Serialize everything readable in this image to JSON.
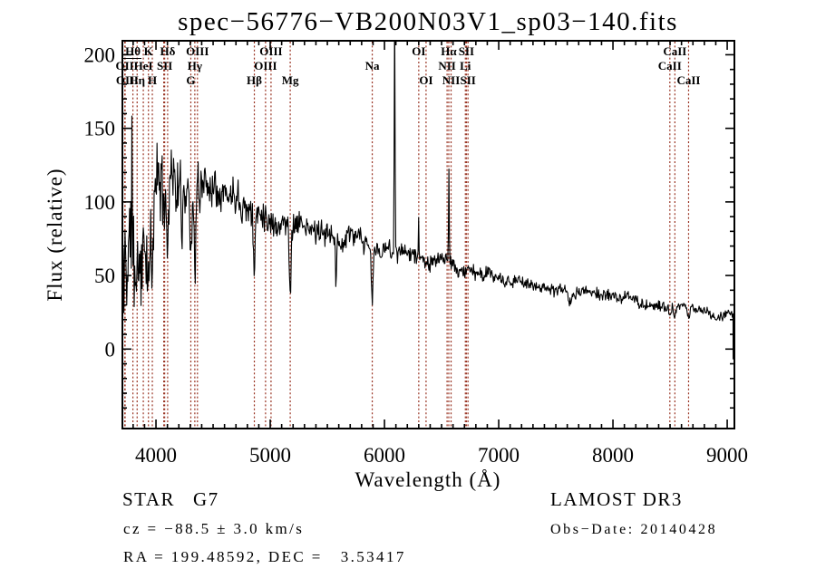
{
  "title": "spec−56776−VB200N03V1_sp03−140.fits",
  "axes": {
    "xlabel": "Wavelength (Å)",
    "ylabel": "Flux (relative)"
  },
  "annotations": {
    "classification": "STAR",
    "subclass": "G7",
    "survey": "LAMOST DR3",
    "cz": "cz = −88.5 ± 3.0 km/s",
    "obs_date": "Obs−Date: 20140428",
    "ra_dec": "RA = 199.48592, DEC =   3.53417"
  },
  "chart_data": {
    "type": "line",
    "title": "spec−56776−VB200N03V1_sp03−140.fits",
    "xlabel": "Wavelength (Å)",
    "ylabel": "Flux (relative)",
    "xlim": [
      3706,
      9063
    ],
    "ylim": [
      -54,
      209.5
    ],
    "x_major_ticks": [
      4000,
      5000,
      6000,
      7000,
      8000,
      9000
    ],
    "x_minor_step": 100,
    "y_major_ticks": [
      0,
      50,
      100,
      150,
      200
    ],
    "y_minor_step": 10,
    "grid": false,
    "line_color": "#000000",
    "marker_line_color": "#993322",
    "spectral_lines": [
      {
        "label": "OII",
        "wl": 3727,
        "row": 2
      },
      {
        "label": "OII",
        "wl": 3730,
        "row": 3
      },
      {
        "label": "Hθ",
        "wl": 3798,
        "row": 1
      },
      {
        "label": "Hη",
        "wl": 3835,
        "row": 3
      },
      {
        "label": "HeI",
        "wl": 3889,
        "row": 2
      },
      {
        "label": "K",
        "wl": 3934,
        "row": 1
      },
      {
        "label": "H",
        "wl": 3968,
        "row": 3
      },
      {
        "label": "",
        "wl": 4068,
        "row": 0
      },
      {
        "label": "SII",
        "wl": 4076,
        "row": 2
      },
      {
        "label": "Hδ",
        "wl": 4102,
        "row": 1
      },
      {
        "label": "G",
        "wl": 4305,
        "row": 3
      },
      {
        "label": "Hγ",
        "wl": 4340,
        "row": 2
      },
      {
        "label": "OIII",
        "wl": 4363,
        "row": 1
      },
      {
        "label": "Hβ",
        "wl": 4861,
        "row": 3
      },
      {
        "label": "OIII",
        "wl": 4959,
        "row": 2
      },
      {
        "label": "OIII",
        "wl": 5007,
        "row": 1
      },
      {
        "label": "Mg",
        "wl": 5175,
        "row": 3
      },
      {
        "label": "Na",
        "wl": 5893,
        "row": 2
      },
      {
        "label": "OI",
        "wl": 6300,
        "row": 1
      },
      {
        "label": "OI",
        "wl": 6364,
        "row": 3
      },
      {
        "label": "NII",
        "wl": 6548,
        "row": 2
      },
      {
        "label": "Hα",
        "wl": 6563,
        "row": 1
      },
      {
        "label": "NII",
        "wl": 6583,
        "row": 3
      },
      {
        "label": "Li",
        "wl": 6708,
        "row": 2
      },
      {
        "label": "SII",
        "wl": 6717,
        "row": 1
      },
      {
        "label": "SII",
        "wl": 6731,
        "row": 3
      },
      {
        "label": "CaII",
        "wl": 8498,
        "row": 2
      },
      {
        "label": "CaII",
        "wl": 8542,
        "row": 1
      },
      {
        "label": "CaII",
        "wl": 8662,
        "row": 3
      }
    ],
    "spectrum_model": {
      "description": "Noisy G-type stellar spectrum: blue end very noisy (±65 about flux ~60), continuum peaks ~110-115 near 4400-4600 Å, declines to ~22 at 9000 Å; strong narrow emission artifact at 6089 Å clipped at plot top (>209), emission spike at Hα 6563 Å peaking ~126, small spike at 6300 Å (~92), deep absorption at CaII K/H, Hδ, Hγ, G, Hβ, Mg 5175, 5577, Na 5893; trace drops to ~ −7 at the red end",
      "continuum": [
        [
          3706,
          35
        ],
        [
          3730,
          60
        ],
        [
          3760,
          62
        ],
        [
          3790,
          68
        ],
        [
          3820,
          72
        ],
        [
          3850,
          78
        ],
        [
          3900,
          88
        ],
        [
          3950,
          98
        ],
        [
          4000,
          106
        ],
        [
          4050,
          104
        ],
        [
          4100,
          107
        ],
        [
          4150,
          108
        ],
        [
          4200,
          110
        ],
        [
          4250,
          107
        ],
        [
          4300,
          109
        ],
        [
          4350,
          107
        ],
        [
          4400,
          114
        ],
        [
          4450,
          112
        ],
        [
          4500,
          114
        ],
        [
          4550,
          110
        ],
        [
          4600,
          111
        ],
        [
          4650,
          107
        ],
        [
          4700,
          107
        ],
        [
          4750,
          104
        ],
        [
          4800,
          101
        ],
        [
          4850,
          98
        ],
        [
          4900,
          96
        ],
        [
          4950,
          93
        ],
        [
          5000,
          91
        ],
        [
          5100,
          88
        ],
        [
          5200,
          86
        ],
        [
          5300,
          85
        ],
        [
          5400,
          82
        ],
        [
          5500,
          79
        ],
        [
          5600,
          77
        ],
        [
          5700,
          75
        ],
        [
          5800,
          72
        ],
        [
          5900,
          69
        ],
        [
          6000,
          67
        ],
        [
          6100,
          65
        ],
        [
          6200,
          64
        ],
        [
          6300,
          62
        ],
        [
          6400,
          60
        ],
        [
          6500,
          59
        ],
        [
          6600,
          57
        ],
        [
          6700,
          55
        ],
        [
          6800,
          52
        ],
        [
          6900,
          50
        ],
        [
          7000,
          48
        ],
        [
          7100,
          46
        ],
        [
          7200,
          45
        ],
        [
          7300,
          43
        ],
        [
          7400,
          42
        ],
        [
          7500,
          41
        ],
        [
          7600,
          39
        ],
        [
          7700,
          38
        ],
        [
          7800,
          37
        ],
        [
          7900,
          36
        ],
        [
          8000,
          35
        ],
        [
          8100,
          34
        ],
        [
          8200,
          33
        ],
        [
          8300,
          32
        ],
        [
          8400,
          31
        ],
        [
          8500,
          30
        ],
        [
          8600,
          29
        ],
        [
          8700,
          27
        ],
        [
          8800,
          25
        ],
        [
          8900,
          23
        ],
        [
          8950,
          22
        ],
        [
          9000,
          24
        ],
        [
          9035,
          26
        ],
        [
          9052,
          24
        ]
      ],
      "noise_envelope": [
        [
          3706,
          65
        ],
        [
          3780,
          52
        ],
        [
          3900,
          38
        ],
        [
          3960,
          30
        ],
        [
          4450,
          18
        ],
        [
          5000,
          12
        ],
        [
          5600,
          9.5
        ],
        [
          6100,
          7.5
        ],
        [
          6600,
          6
        ],
        [
          7200,
          5
        ],
        [
          8200,
          4.5
        ],
        [
          9052,
          4
        ]
      ],
      "absorption_features": [
        [
          3934,
          55,
          9
        ],
        [
          3968,
          50,
          8
        ],
        [
          4102,
          45,
          7
        ],
        [
          4227,
          25,
          6
        ],
        [
          4305,
          30,
          9
        ],
        [
          4340,
          48,
          7
        ],
        [
          4383,
          22,
          6
        ],
        [
          4861,
          42,
          7
        ],
        [
          5175,
          44,
          8
        ],
        [
          5577,
          32,
          5
        ],
        [
          5893,
          34,
          8
        ],
        [
          7620,
          8,
          20
        ],
        [
          8500,
          7,
          9
        ],
        [
          8542,
          8,
          9
        ],
        [
          8662,
          8,
          9
        ]
      ],
      "emission_features": [
        [
          3789,
          95,
          3
        ],
        [
          6089,
          170,
          3.5
        ],
        [
          6299,
          30,
          3
        ],
        [
          6564,
          68,
          3
        ]
      ],
      "end_points": [
        [
          9051,
          24
        ],
        [
          9052,
          -7
        ]
      ],
      "start": 3709,
      "stop": 9049,
      "step": 5,
      "seed": 11
    }
  }
}
